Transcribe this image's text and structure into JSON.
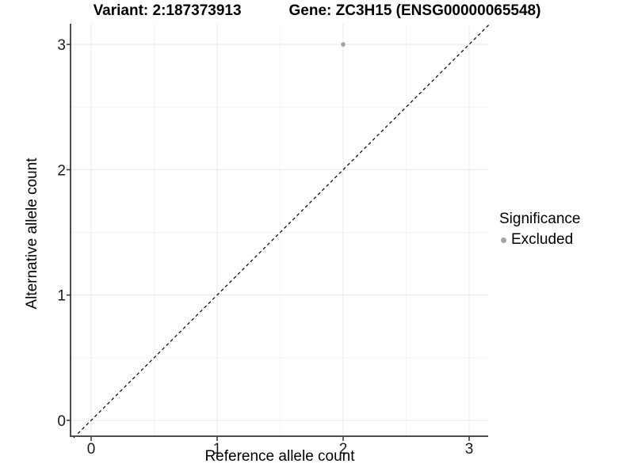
{
  "title": {
    "variant": "Variant: 2:187373913",
    "gene": "Gene: ZC3H15 (ENSG00000065548)"
  },
  "axes": {
    "x_label": "Reference allele count",
    "y_label": "Alternative allele count"
  },
  "legend": {
    "title": "Significance",
    "items": [
      {
        "label": "Excluded",
        "color": "#a3a3a3"
      }
    ]
  },
  "colors": {
    "axis_line": "#4d4d4d",
    "tick": "#333333",
    "tick_label": "#1a1a1a",
    "grid_major": "#e8e8e8",
    "grid_minor": "#f4f4f4",
    "reference_line": "#000000",
    "point": "#a3a3a3"
  },
  "chart_data": {
    "type": "scatter",
    "title": "Variant: 2:187373913   Gene: ZC3H15 (ENSG00000065548)",
    "xlabel": "Reference allele count",
    "ylabel": "Alternative allele count",
    "xlim": [
      -0.163,
      3.157
    ],
    "ylim": [
      -0.139,
      3.165
    ],
    "x_ticks": [
      0,
      1,
      2,
      3
    ],
    "y_ticks": [
      0,
      1,
      2,
      3
    ],
    "grid": {
      "major": true,
      "minor": true
    },
    "legend_position": "right",
    "reference_line": {
      "type": "identity",
      "style": "dashed"
    },
    "series": [
      {
        "name": "Excluded",
        "color": "#a3a3a3",
        "points": [
          {
            "x": 2,
            "y": 3
          }
        ]
      }
    ]
  }
}
